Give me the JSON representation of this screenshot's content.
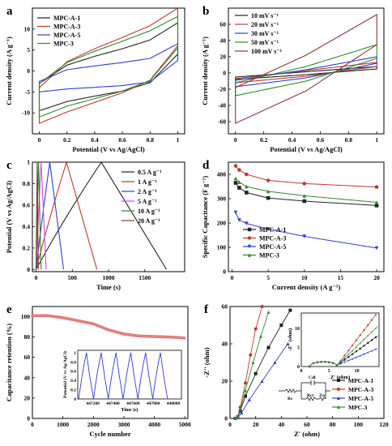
{
  "chart_data": [
    {
      "panel": "a",
      "type": "line",
      "xlabel": "Potential (V vs Ag/AgCl)",
      "ylabel": "Current density (A g⁻¹)",
      "xlim": [
        -0.05,
        1.05
      ],
      "ylim": [
        -15,
        15
      ],
      "xticks": [
        0.0,
        0.2,
        0.4,
        0.6,
        0.8,
        1.0
      ],
      "yticks": [
        -10,
        -5,
        0,
        5,
        10
      ],
      "legend_position": "top-left",
      "grid": false,
      "series": [
        {
          "name": "MPC-A-1",
          "color": "#222222",
          "upper": [
            [
              0,
              -3
            ],
            [
              0.2,
              1.4
            ],
            [
              0.4,
              3.5
            ],
            [
              0.6,
              5.3
            ],
            [
              0.8,
              7.4
            ],
            [
              1.0,
              11.5
            ]
          ],
          "lower": [
            [
              0,
              -9.5
            ],
            [
              0.2,
              -7.3
            ],
            [
              0.4,
              -6.0
            ],
            [
              0.6,
              -4.8
            ],
            [
              0.8,
              -2.8
            ],
            [
              1.0,
              4.0
            ]
          ]
        },
        {
          "name": "MPC-A-3",
          "color": "#c0392b",
          "upper": [
            [
              0,
              -4
            ],
            [
              0.2,
              2.2
            ],
            [
              0.4,
              5.3
            ],
            [
              0.6,
              8.0
            ],
            [
              0.8,
              10.8
            ],
            [
              1.0,
              15.0
            ]
          ],
          "lower": [
            [
              0,
              -12.5
            ],
            [
              0.2,
              -9.8
            ],
            [
              0.4,
              -7.5
            ],
            [
              0.6,
              -5.2
            ],
            [
              0.8,
              -2.2
            ],
            [
              1.0,
              6.0
            ]
          ]
        },
        {
          "name": "MPC-A-5",
          "color": "#2f3fcf",
          "upper": [
            [
              0,
              -2.5
            ],
            [
              0.2,
              0.3
            ],
            [
              0.4,
              1.2
            ],
            [
              0.6,
              2.0
            ],
            [
              0.8,
              3.0
            ],
            [
              1.0,
              6.5
            ]
          ],
          "lower": [
            [
              0,
              -5.0
            ],
            [
              0.2,
              -4.3
            ],
            [
              0.4,
              -3.9
            ],
            [
              0.6,
              -3.5
            ],
            [
              0.8,
              -2.6
            ],
            [
              1.0,
              2.5
            ]
          ]
        },
        {
          "name": "MPC-3",
          "color": "#2e8b2e",
          "upper": [
            [
              0,
              -3
            ],
            [
              0.2,
              2.0
            ],
            [
              0.4,
              4.7
            ],
            [
              0.6,
              7.1
            ],
            [
              0.8,
              9.6
            ],
            [
              1.0,
              13.0
            ]
          ],
          "lower": [
            [
              0,
              -11
            ],
            [
              0.2,
              -8.4
            ],
            [
              0.4,
              -6.6
            ],
            [
              0.6,
              -4.8
            ],
            [
              0.8,
              -2.3
            ],
            [
              1.0,
              5.5
            ]
          ]
        }
      ]
    },
    {
      "panel": "b",
      "type": "line",
      "xlabel": "Potential (V vs Ag/AgCl)",
      "ylabel": "Current density (A g⁻¹)",
      "xlim": [
        -0.05,
        1.05
      ],
      "ylim": [
        -75,
        80
      ],
      "xticks": [
        0.0,
        0.2,
        0.4,
        0.6,
        0.8,
        1.0
      ],
      "yticks": [
        -60,
        -40,
        -20,
        0,
        20,
        40,
        60
      ],
      "legend_position": "top-left",
      "grid": false,
      "series": [
        {
          "name": "10 mV s⁻¹",
          "color": "#222222",
          "upper": [
            [
              0,
              -5
            ],
            [
              0.5,
              1.5
            ],
            [
              1.0,
              8
            ]
          ],
          "lower": [
            [
              0,
              -8
            ],
            [
              0.5,
              -2
            ],
            [
              1.0,
              5
            ]
          ]
        },
        {
          "name": "20 mV s⁻¹",
          "color": "#c0392b",
          "upper": [
            [
              0,
              -7
            ],
            [
              0.5,
              3
            ],
            [
              1.0,
              13
            ]
          ],
          "lower": [
            [
              0,
              -12
            ],
            [
              0.5,
              -4
            ],
            [
              1.0,
              8
            ]
          ]
        },
        {
          "name": "30 mV s⁻¹",
          "color": "#2f3fcf",
          "upper": [
            [
              0,
              -9
            ],
            [
              0.5,
              4
            ],
            [
              1.0,
              20
            ]
          ],
          "lower": [
            [
              0,
              -17
            ],
            [
              0.5,
              -6
            ],
            [
              1.0,
              12
            ]
          ]
        },
        {
          "name": "50 mV s⁻¹",
          "color": "#2e8b2e",
          "upper": [
            [
              0,
              -12
            ],
            [
              0.5,
              8
            ],
            [
              1.0,
              35
            ]
          ],
          "lower": [
            [
              0,
              -28
            ],
            [
              0.5,
              -10
            ],
            [
              1.0,
              18
            ]
          ]
        },
        {
          "name": "100 mV s⁻¹",
          "color": "#8b3a3a",
          "upper": [
            [
              0,
              -18
            ],
            [
              0.5,
              22
            ],
            [
              1.0,
              72
            ]
          ],
          "lower": [
            [
              0,
              -62
            ],
            [
              0.5,
              -22
            ],
            [
              1.0,
              35
            ]
          ]
        }
      ]
    },
    {
      "panel": "c",
      "type": "line",
      "xlabel": "Time (s)",
      "ylabel": "Potential (V vs Ag/AgCl)",
      "xlim": [
        -50,
        2050
      ],
      "ylim": [
        -0.02,
        1.0
      ],
      "xticks": [
        0,
        500,
        1000,
        1500
      ],
      "yticks": [
        0.0,
        0.2,
        0.4,
        0.6,
        0.8,
        1.0
      ],
      "legend_position": "right",
      "grid": false,
      "series": [
        {
          "name": "0.5 A g⁻¹",
          "color": "#222222",
          "peak_time": 900,
          "end_time": 1800
        },
        {
          "name": "1 A g⁻¹",
          "color": "#c0392b",
          "peak_time": 420,
          "end_time": 840
        },
        {
          "name": "2 A g⁻¹",
          "color": "#2f3fcf",
          "peak_time": 190,
          "end_time": 380
        },
        {
          "name": "5 A g⁻¹",
          "color": "#d04bd0",
          "peak_time": 70,
          "end_time": 140
        },
        {
          "name": "10 A g⁻¹",
          "color": "#2e8b2e",
          "peak_time": 35,
          "end_time": 70
        },
        {
          "name": "20 A g⁻¹",
          "color": "#8b3a3a",
          "peak_time": 16,
          "end_time": 32
        }
      ]
    },
    {
      "panel": "d",
      "type": "line",
      "xlabel": "Current density (A g⁻¹)",
      "ylabel": "Specific Capacitance (F g⁻¹)",
      "xlim": [
        -0.5,
        21
      ],
      "ylim": [
        0,
        450
      ],
      "xticks": [
        0,
        5,
        10,
        15,
        20
      ],
      "yticks": [
        0,
        100,
        200,
        300,
        400
      ],
      "legend_position": "lower-left",
      "grid": false,
      "x": [
        0.5,
        1,
        2,
        5,
        10,
        20
      ],
      "series": [
        {
          "name": "MPC-A-1",
          "color": "#222222",
          "marker": "square",
          "values": [
            365,
            345,
            325,
            303,
            290,
            272
          ]
        },
        {
          "name": "MPC-A-3",
          "color": "#c0392b",
          "marker": "circle",
          "values": [
            435,
            418,
            400,
            375,
            362,
            348
          ]
        },
        {
          "name": "MPC-A-5",
          "color": "#2f3fcf",
          "marker": "triangle-down",
          "values": [
            243,
            212,
            198,
            175,
            145,
            97
          ]
        },
        {
          "name": "MPC-3",
          "color": "#2e8b2e",
          "marker": "triangle-up",
          "values": [
            383,
            368,
            350,
            330,
            312,
            285
          ]
        }
      ]
    },
    {
      "panel": "e",
      "type": "scatter",
      "xlabel": "Cycle number",
      "ylabel": "Capacitance retention (%)",
      "xlim": [
        0,
        5100
      ],
      "ylim": [
        0,
        110
      ],
      "xticks": [
        0,
        1000,
        2000,
        3000,
        4000,
        5000
      ],
      "yticks": [
        0,
        20,
        40,
        60,
        80,
        100
      ],
      "grid": false,
      "x": [
        0,
        500,
        1000,
        1500,
        2000,
        2500,
        3000,
        3500,
        4000,
        4500,
        5000
      ],
      "values": [
        101,
        101,
        99,
        96,
        93,
        87,
        83,
        81,
        80.5,
        80,
        79
      ],
      "inset": {
        "type": "line",
        "xlabel": "Time (s)",
        "ylabel": "Potential (V vs Ag/AgCl)",
        "xlim": [
          447050,
          448080
        ],
        "ylim": [
          0,
          1.05
        ],
        "xticks": [
          447200,
          447400,
          447600,
          447800,
          448000
        ],
        "yticks": [
          0.0,
          0.2,
          0.4,
          0.6,
          0.8,
          1.0
        ],
        "period": 147,
        "cycles": 7
      }
    },
    {
      "panel": "f",
      "type": "scatter",
      "xlabel": "Z' (ohm)",
      "ylabel": "-Z'' (ohm)",
      "xlim": [
        0,
        120
      ],
      "ylim": [
        0,
        60
      ],
      "xticks": [
        0,
        20,
        40,
        60,
        80,
        100,
        120
      ],
      "yticks": [
        0,
        20,
        40,
        60
      ],
      "legend_position": "lower-right",
      "grid": false,
      "series": [
        {
          "name": "MPC-A-1",
          "color": "#222222",
          "marker": "square",
          "points": [
            [
              4,
              0
            ],
            [
              6,
              0.8
            ],
            [
              8,
              4
            ],
            [
              12,
              12
            ],
            [
              20,
              24
            ],
            [
              30,
              38
            ],
            [
              40,
              50
            ],
            [
              47,
              58
            ]
          ]
        },
        {
          "name": "MPC-A-3",
          "color": "#c0392b",
          "marker": "circle",
          "points": [
            [
              4,
              0
            ],
            [
              6,
              1
            ],
            [
              8,
              6
            ],
            [
              12,
              19
            ],
            [
              16,
              34
            ],
            [
              20,
              48
            ],
            [
              25,
              60
            ]
          ]
        },
        {
          "name": "MPC-A-5",
          "color": "#2f3fcf",
          "marker": "triangle-up",
          "points": [
            [
              4,
              0
            ],
            [
              6,
              0.5
            ],
            [
              9,
              3
            ],
            [
              15,
              10
            ],
            [
              25,
              20
            ],
            [
              35,
              30
            ],
            [
              45,
              40
            ]
          ]
        },
        {
          "name": "MPC-3",
          "color": "#2e8b2e",
          "marker": "triangle-up",
          "points": [
            [
              4,
              0
            ],
            [
              6,
              1
            ],
            [
              8,
              5
            ],
            [
              12,
              15
            ],
            [
              18,
              30
            ],
            [
              24,
              44
            ],
            [
              30,
              57
            ]
          ]
        }
      ],
      "inset": {
        "xlabel": "Z' (ohm)",
        "ylabel": "-Z'' (ohm)",
        "xlim": [
          0,
          14
        ],
        "ylim": [
          0,
          14
        ],
        "xticks": [
          0,
          5,
          10
        ],
        "yticks": [
          0,
          5,
          10
        ],
        "circuit_labels": [
          "Cdl",
          "Rs",
          "Rct",
          "Zw"
        ]
      }
    }
  ]
}
